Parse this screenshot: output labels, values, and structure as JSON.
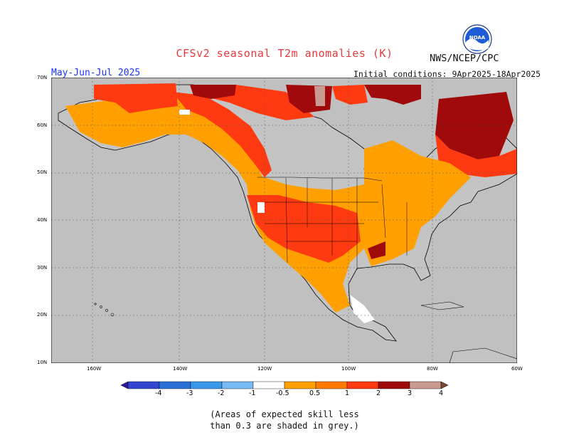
{
  "header": {
    "title": "CFSv2 seasonal T2m anomalies (K)",
    "organization": "NWS/NCEP/CPC",
    "period": "May-Jun-Jul 2025",
    "initial_conditions": "Initial conditions: 9Apr2025-18Apr2025",
    "logo_text": "NOAA"
  },
  "map": {
    "projection": "lat-lon",
    "lat_range": [
      10,
      70
    ],
    "lon_range": [
      -190,
      -60
    ],
    "lat_labels": [
      "70N",
      "60N",
      "50N",
      "40N",
      "30N",
      "20N",
      "10N"
    ],
    "lon_labels": [
      "160W",
      "140W",
      "120W",
      "100W",
      "80W",
      "60W"
    ],
    "ocean_color": "#c0c0c0",
    "grid": "dashed"
  },
  "colorbar": {
    "ticks": [
      "-4",
      "-3",
      "-2",
      "-1",
      "-0.5",
      "0.5",
      "1",
      "2",
      "3",
      "4"
    ],
    "colors": [
      "#2a1c9c",
      "#3246d2",
      "#2a70d8",
      "#3a98ea",
      "#78baf4",
      "#ffffff",
      "#ffa000",
      "#ff7a00",
      "#ff3a10",
      "#a00a0a",
      "#c89a90",
      "#7a4636"
    ]
  },
  "footnote": {
    "line1": "(Areas of expected skill less",
    "line2": "than 0.3 are shaded in grey.)"
  }
}
